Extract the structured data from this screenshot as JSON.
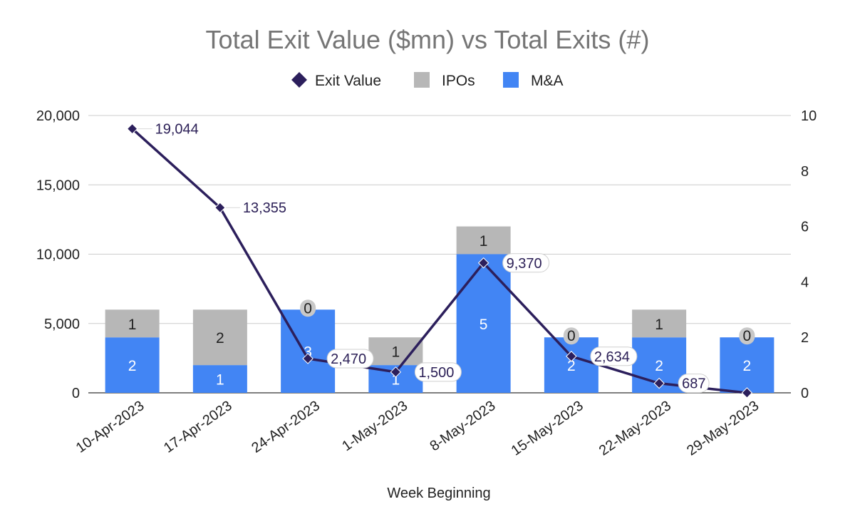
{
  "chart_data": {
    "type": "bar",
    "title": "Total Exit Value ($mn) vs Total Exits (#)",
    "xlabel": "Week Beginning",
    "ylabel_left": "",
    "ylabel_right": "",
    "categories": [
      "10-Apr-2023",
      "17-Apr-2023",
      "24-Apr-2023",
      "1-May-2023",
      "8-May-2023",
      "15-May-2023",
      "22-May-2023",
      "29-May-2023"
    ],
    "series": [
      {
        "name": "M&A",
        "kind": "bar",
        "axis": "right",
        "color": "#4285f4",
        "values": [
          2,
          1,
          3,
          1,
          5,
          2,
          2,
          2
        ]
      },
      {
        "name": "IPOs",
        "kind": "bar",
        "axis": "right",
        "color": "#b7b7b7",
        "values": [
          1,
          2,
          0,
          1,
          1,
          0,
          1,
          0
        ]
      },
      {
        "name": "Exit Value",
        "kind": "line",
        "axis": "left",
        "color": "#2c1f5c",
        "marker": "diamond",
        "values": [
          19044,
          13355,
          2470,
          1500,
          9370,
          2634,
          687,
          0
        ],
        "value_labels": [
          "19,044",
          "13,355",
          "2,470",
          "1,500",
          "9,370",
          "2,634",
          "687",
          ""
        ]
      }
    ],
    "legend": [
      "Exit Value",
      "IPOs",
      "M&A"
    ],
    "left_axis": {
      "ylim": [
        0,
        20000
      ],
      "ticks": [
        "0",
        "5,000",
        "10,000",
        "15,000",
        "20,000"
      ]
    },
    "right_axis": {
      "ylim": [
        0,
        10
      ],
      "ticks": [
        "0",
        "2",
        "4",
        "6",
        "8",
        "10"
      ]
    },
    "legend_position": "top-center",
    "grid": true
  }
}
